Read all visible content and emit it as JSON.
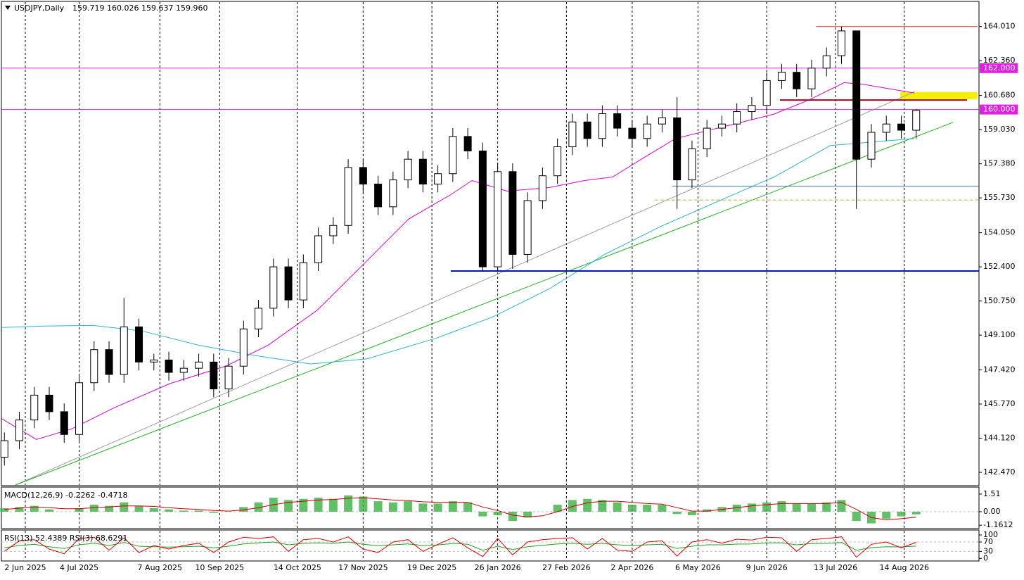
{
  "chart_data": [
    {
      "type": "candlestick",
      "title": "USDJPY,Daily",
      "subtitle": "159.719 160.026 159.637 159.960",
      "x": [
        1,
        6,
        11,
        16,
        21,
        26,
        31,
        36,
        41,
        46,
        51,
        56,
        61,
        66,
        71,
        76,
        81,
        86,
        91,
        96,
        101,
        106,
        111,
        116,
        121,
        126,
        131,
        136,
        141,
        146,
        151,
        156,
        161,
        166,
        171,
        176,
        181,
        186,
        191,
        196,
        201,
        206,
        211,
        216,
        221,
        226,
        231,
        236,
        241,
        246,
        251,
        256,
        261,
        266,
        271,
        276,
        281,
        286,
        291,
        296,
        301,
        306
      ],
      "open": [
        143.2,
        144.0,
        145.0,
        146.2,
        145.4,
        144.3,
        146.8,
        148.4,
        147.2,
        149.5,
        147.8,
        147.9,
        147.3,
        147.5,
        147.8,
        146.5,
        147.6,
        149.4,
        150.4,
        152.4,
        150.8,
        152.6,
        153.9,
        154.4,
        157.2,
        156.4,
        155.3,
        156.6,
        157.6,
        156.4,
        156.9,
        158.7,
        158.0,
        152.4,
        157.0,
        153.0,
        155.6,
        156.8,
        158.2,
        159.4,
        158.6,
        159.8,
        159.1,
        158.6,
        159.3,
        159.6,
        156.6,
        158.1,
        159.1,
        159.3,
        159.9,
        160.2,
        161.4,
        161.8,
        161.0,
        162.0,
        162.6,
        163.8,
        157.6,
        158.9,
        159.3,
        159.0
      ],
      "high": [
        144.4,
        145.4,
        146.6,
        146.6,
        145.8,
        147.2,
        148.8,
        148.8,
        150.9,
        149.9,
        148.2,
        148.3,
        147.9,
        148.2,
        148.2,
        148.0,
        149.8,
        150.8,
        152.8,
        152.8,
        153.0,
        154.3,
        154.8,
        157.6,
        157.6,
        156.8,
        157.0,
        158.0,
        158.0,
        157.3,
        159.1,
        159.1,
        158.4,
        157.4,
        157.4,
        156.0,
        157.2,
        158.6,
        159.8,
        159.8,
        160.2,
        160.2,
        159.5,
        159.7,
        160.0,
        160.6,
        158.5,
        159.5,
        159.7,
        160.3,
        160.6,
        161.8,
        162.2,
        162.2,
        162.4,
        163.0,
        164.0,
        163.7,
        159.3,
        159.7,
        159.7,
        160.03
      ],
      "low": [
        142.8,
        143.6,
        144.6,
        145.0,
        143.9,
        143.9,
        146.4,
        146.8,
        146.8,
        147.4,
        147.4,
        146.9,
        146.9,
        147.1,
        146.1,
        146.1,
        147.2,
        149.0,
        150.0,
        150.4,
        150.4,
        152.2,
        153.5,
        154.0,
        156.0,
        154.9,
        154.9,
        156.2,
        156.0,
        156.0,
        156.5,
        157.6,
        152.2,
        152.2,
        152.3,
        152.6,
        155.2,
        156.4,
        157.8,
        158.2,
        158.2,
        158.7,
        158.2,
        158.2,
        158.9,
        155.2,
        156.2,
        157.7,
        158.7,
        158.9,
        159.5,
        159.8,
        161.0,
        160.6,
        160.6,
        161.6,
        162.2,
        155.2,
        157.2,
        158.5,
        158.6,
        158.6
      ],
      "close": [
        144.0,
        145.0,
        146.2,
        145.4,
        144.3,
        146.8,
        148.4,
        147.2,
        149.5,
        147.8,
        147.9,
        147.3,
        147.5,
        147.8,
        146.5,
        147.6,
        149.4,
        150.4,
        152.4,
        150.8,
        152.6,
        153.9,
        154.4,
        157.2,
        156.4,
        155.3,
        156.6,
        157.6,
        156.4,
        156.9,
        158.7,
        158.0,
        152.4,
        157.0,
        153.0,
        155.6,
        156.8,
        158.2,
        159.4,
        158.6,
        159.8,
        159.1,
        158.6,
        159.3,
        159.6,
        156.6,
        158.1,
        159.1,
        159.3,
        159.9,
        160.2,
        161.4,
        161.8,
        161.0,
        162.0,
        162.6,
        163.8,
        157.6,
        158.9,
        159.3,
        159.0,
        159.96
      ],
      "xlim": [
        0,
        327
      ],
      "ylim": [
        141.86,
        165.19
      ],
      "yticks": [
        {
          "value": 164.01,
          "label": "164.010"
        },
        {
          "value": 162.36,
          "label": "162.360"
        },
        {
          "value": 160.68,
          "label": "160.680"
        },
        {
          "value": 159.03,
          "label": "159.030"
        },
        {
          "value": 157.38,
          "label": "157.380"
        },
        {
          "value": 155.73,
          "label": "155.730"
        },
        {
          "value": 154.05,
          "label": "154.050"
        },
        {
          "value": 152.4,
          "label": "152.400"
        },
        {
          "value": 150.75,
          "label": "150.750"
        },
        {
          "value": 149.1,
          "label": "149.100"
        },
        {
          "value": 147.42,
          "label": "147.420"
        },
        {
          "value": 145.77,
          "label": "145.770"
        },
        {
          "value": 144.12,
          "label": "144.120"
        },
        {
          "value": 142.47,
          "label": "142.470"
        }
      ],
      "xticks": [
        {
          "value": 8,
          "label": "2 Jun 2025"
        },
        {
          "value": 26,
          "label": "4 Jul 2025"
        },
        {
          "value": 53,
          "label": "7 Aug 2025"
        },
        {
          "value": 73,
          "label": "10 Sep 2025"
        },
        {
          "value": 99,
          "label": "14 Oct 2025"
        },
        {
          "value": 121,
          "label": "17 Nov 2025"
        },
        {
          "value": 144,
          "label": "19 Dec 2025"
        },
        {
          "value": 166,
          "label": "26 Jan 2026"
        },
        {
          "value": 189,
          "label": "27 Feb 2026"
        },
        {
          "value": 211,
          "label": "2 Apr 2026"
        },
        {
          "value": 233,
          "label": "6 May 2026"
        },
        {
          "value": 256,
          "label": "9 Jun 2026"
        },
        {
          "value": 279,
          "label": "13 Jul 2026"
        },
        {
          "value": 302,
          "label": "14 Aug 2026"
        }
      ],
      "lines": [
        {
          "color": "#d400d4",
          "x": [
            0,
            11.7,
            23.5,
            37.6,
            56.4,
            75.2,
            89.3,
            105.7,
            122.2,
            136.2,
            150.3,
            157.4,
            169.1,
            183.2,
            195,
            204.4,
            213.8,
            225.5,
            244.3,
            258.4,
            270.1,
            281.9,
            289,
            298.3,
            305.4
          ],
          "values": [
            145.07,
            144.06,
            144.57,
            145.58,
            146.76,
            147.61,
            148.62,
            150.31,
            152.68,
            154.71,
            155.89,
            156.57,
            156.06,
            156.23,
            156.57,
            156.74,
            157.58,
            158.6,
            159.27,
            159.78,
            160.46,
            161.3,
            161.2,
            160.97,
            160.8
          ]
        },
        {
          "color": "#2ab5c8",
          "x": [
            0,
            14.1,
            30.5,
            47,
            65.8,
            84.6,
            103.4,
            122.2,
            145.6,
            164.4,
            183.2,
            202,
            220.8,
            239.6,
            258.4,
            277.3,
            291.3,
            305.4
          ],
          "values": [
            149.47,
            149.54,
            149.57,
            149.3,
            148.62,
            148.12,
            147.71,
            147.95,
            148.96,
            149.98,
            151.33,
            153.02,
            154.37,
            155.56,
            156.74,
            158.26,
            158.43,
            158.6
          ]
        }
      ],
      "trendlines": [
        {
          "color": "#a0a0a0",
          "x": [
            4.7,
            305.4
          ],
          "values": [
            141.86,
            160.86
          ]
        },
        {
          "color": "#22b022",
          "x": [
            4.7,
            318.3
          ],
          "values": [
            141.86,
            159.38
          ]
        }
      ],
      "levels": [
        {
          "value": 162,
          "label": "162.000",
          "color": "#e020e0",
          "x": [
            0,
            327
          ]
        },
        {
          "value": 160,
          "label": "160.000",
          "color": "#e020e0",
          "x": [
            0,
            327
          ]
        },
        {
          "value": 164.01,
          "color": "#e03030",
          "x": [
            272.5,
            326.5
          ]
        },
        {
          "value": 160.46,
          "color": "#b00020",
          "x": [
            260.4,
            323
          ]
        },
        {
          "value": 152.2,
          "color": "#0018b0",
          "x": [
            150.3,
            327
          ]
        },
        {
          "value": 156.3,
          "color": "#4a78b0",
          "x": [
            224.3,
            327
          ]
        },
        {
          "value": 155.63,
          "color": "#b8b040",
          "x": [
            218.5,
            327
          ],
          "dashed": true
        }
      ],
      "zone": {
        "color": "#f5f000",
        "x": [
          300.7,
          326.5
        ],
        "values": [
          160.5,
          160.85
        ]
      }
    },
    {
      "type": "macd",
      "title": "MACD(12,26,9) -0.2262 -0.4718",
      "ylim": [
        -1.39,
        2.05
      ],
      "yticks": [
        1.51,
        {
          "value": 0,
          "label": "0.00"
        },
        -1.1612
      ],
      "series": [
        {
          "color": "#3cb043",
          "style": "histogram",
          "values": [
            0.3,
            0.4,
            0.5,
            0.2,
            0.0,
            0.3,
            0.6,
            0.5,
            0.8,
            0.5,
            0.3,
            0.2,
            0.1,
            0.1,
            -0.1,
            0.0,
            0.4,
            0.8,
            1.2,
            1.0,
            1.1,
            1.2,
            1.1,
            1.4,
            1.3,
            0.9,
            0.8,
            0.9,
            0.7,
            0.7,
            0.9,
            0.8,
            -0.4,
            -0.3,
            -0.8,
            -0.5,
            0.0,
            0.6,
            1.0,
            1.1,
            1.0,
            0.8,
            0.6,
            0.6,
            0.6,
            -0.2,
            -0.3,
            0.2,
            0.4,
            0.6,
            0.7,
            0.8,
            0.9,
            0.7,
            0.7,
            0.8,
            1.0,
            -0.8,
            -1.0,
            -0.6,
            -0.4,
            -0.2262
          ]
        },
        {
          "color": "#cc0000",
          "style": "line",
          "values": [
            0.2,
            0.3,
            0.4,
            0.35,
            0.25,
            0.25,
            0.35,
            0.4,
            0.5,
            0.5,
            0.45,
            0.35,
            0.25,
            0.2,
            0.1,
            0.05,
            0.15,
            0.35,
            0.6,
            0.8,
            0.9,
            1.0,
            1.05,
            1.15,
            1.2,
            1.1,
            1.0,
            0.95,
            0.85,
            0.8,
            0.8,
            0.8,
            0.4,
            0.1,
            -0.3,
            -0.45,
            -0.35,
            0.0,
            0.45,
            0.75,
            0.9,
            0.9,
            0.8,
            0.7,
            0.65,
            0.35,
            0.05,
            0.05,
            0.2,
            0.35,
            0.5,
            0.6,
            0.7,
            0.7,
            0.7,
            0.7,
            0.8,
            0.2,
            -0.5,
            -0.7,
            -0.6,
            -0.4718
          ]
        }
      ]
    },
    {
      "type": "line",
      "title": "RSI(13) 52.4389  RSI(3) 68.6291",
      "ylim": [
        -8,
        118
      ],
      "yticks": [
        100,
        70,
        30,
        0
      ],
      "series": [
        {
          "color": "#22a022",
          "values": [
            45,
            55,
            60,
            50,
            42,
            58,
            65,
            55,
            68,
            52,
            50,
            48,
            50,
            52,
            45,
            52,
            62,
            66,
            70,
            58,
            64,
            66,
            64,
            70,
            60,
            54,
            58,
            62,
            55,
            57,
            64,
            60,
            35,
            52,
            38,
            50,
            56,
            62,
            65,
            60,
            64,
            58,
            55,
            58,
            60,
            42,
            52,
            58,
            58,
            61,
            62,
            66,
            66,
            58,
            63,
            64,
            68,
            35,
            46,
            50,
            49,
            52.4389
          ]
        },
        {
          "color": "#dd0000",
          "values": [
            30,
            75,
            80,
            40,
            20,
            85,
            90,
            35,
            88,
            25,
            55,
            40,
            55,
            65,
            25,
            70,
            90,
            85,
            92,
            30,
            80,
            85,
            70,
            92,
            40,
            25,
            70,
            80,
            30,
            60,
            88,
            45,
            8,
            85,
            15,
            70,
            80,
            85,
            88,
            40,
            85,
            35,
            30,
            70,
            75,
            10,
            70,
            80,
            65,
            82,
            78,
            90,
            88,
            30,
            80,
            85,
            92,
            5,
            60,
            70,
            45,
            68.6291
          ]
        }
      ]
    }
  ]
}
